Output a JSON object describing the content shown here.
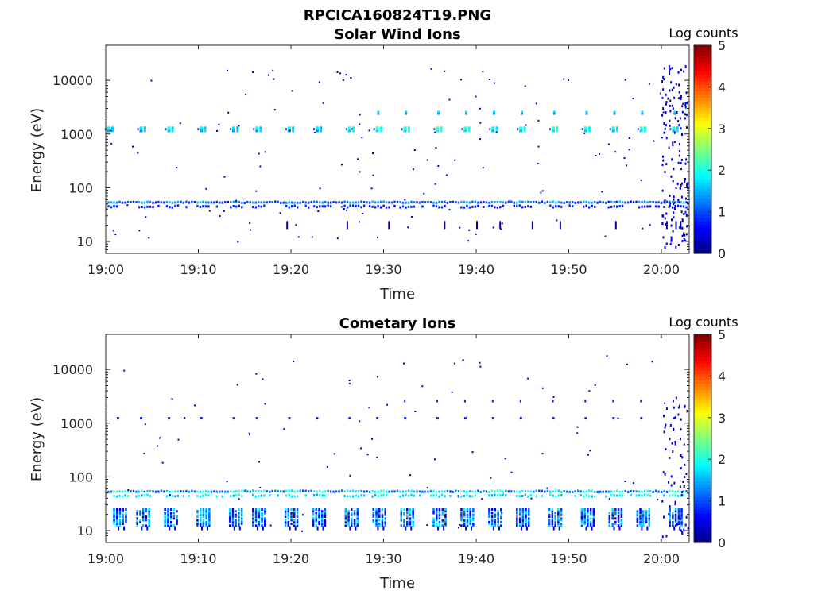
{
  "figure_title": "RPCICA160824T19.PNG",
  "colormap_stops": [
    "#00007f",
    "#0000ff",
    "#007fff",
    "#00ffff",
    "#7fff7f",
    "#ffff00",
    "#ff7f00",
    "#ff0000",
    "#7f0000"
  ],
  "chart_data": [
    {
      "type": "heatmap",
      "title": "Solar Wind Ions",
      "xlabel": "Time",
      "ylabel": "Energy (eV)",
      "colorbar_label": "Log counts",
      "x_ticks": [
        "19:00",
        "19:10",
        "19:20",
        "19:30",
        "19:40",
        "19:50",
        "20:00"
      ],
      "y_ticks": [
        "10",
        "100",
        "1000",
        "10000"
      ],
      "y_scale": "log",
      "ylim": [
        6,
        45000
      ],
      "xlim": [
        "19:00",
        "20:03"
      ],
      "color_ticks": [
        "0",
        "1",
        "2",
        "3",
        "4",
        "5"
      ],
      "clim": [
        0,
        5
      ],
      "sweep_times": [
        "19:00.5",
        "19:04",
        "19:07",
        "19:10.5",
        "19:14",
        "19:16.5",
        "19:20",
        "19:23",
        "19:26.5",
        "19:29.5",
        "19:32.5",
        "19:36",
        "19:39",
        "19:42",
        "19:45",
        "19:48.5",
        "19:52",
        "19:55",
        "19:58",
        "20:01.5"
      ],
      "events": [
        {
          "time": "19:00.5",
          "energy": 1250,
          "log_counts": 1.9
        },
        {
          "time": "19:04",
          "energy": 1250,
          "log_counts": 1.8
        },
        {
          "time": "19:07",
          "energy": 1250,
          "log_counts": 2.0
        },
        {
          "time": "19:10.5",
          "energy": 1250,
          "log_counts": 1.9
        },
        {
          "time": "19:14",
          "energy": 1250,
          "log_counts": 1.8
        },
        {
          "time": "19:16.5",
          "energy": 1250,
          "log_counts": 1.9
        },
        {
          "time": "19:20",
          "energy": 1250,
          "log_counts": 1.9
        },
        {
          "time": "19:23",
          "energy": 1250,
          "log_counts": 1.8
        },
        {
          "time": "19:26.5",
          "energy": 1250,
          "log_counts": 2.1
        },
        {
          "time": "19:29.5",
          "energy": 1250,
          "log_counts": 2.2
        },
        {
          "time": "19:32.5",
          "energy": 1250,
          "log_counts": 2.2
        },
        {
          "time": "19:36",
          "energy": 1250,
          "log_counts": 2.3
        },
        {
          "time": "19:39",
          "energy": 1250,
          "log_counts": 2.2
        },
        {
          "time": "19:42",
          "energy": 1250,
          "log_counts": 2.0
        },
        {
          "time": "19:45",
          "energy": 1250,
          "log_counts": 2.1
        },
        {
          "time": "19:48.5",
          "energy": 1250,
          "log_counts": 2.2
        },
        {
          "time": "19:52",
          "energy": 1250,
          "log_counts": 2.1
        },
        {
          "time": "19:55",
          "energy": 1250,
          "log_counts": 2.0
        },
        {
          "time": "19:58",
          "energy": 1250,
          "log_counts": 2.2
        },
        {
          "time": "20:01.5",
          "energy": 1250,
          "log_counts": 2.0
        }
      ],
      "low_energy_band_eV": [
        45,
        58
      ]
    },
    {
      "type": "heatmap",
      "title": "Cometary Ions",
      "xlabel": "Time",
      "ylabel": "Energy (eV)",
      "colorbar_label": "Log counts",
      "x_ticks": [
        "19:00",
        "19:10",
        "19:20",
        "19:30",
        "19:40",
        "19:50",
        "20:00"
      ],
      "y_ticks": [
        "10",
        "100",
        "1000",
        "10000"
      ],
      "y_scale": "log",
      "ylim": [
        6,
        45000
      ],
      "xlim": [
        "19:00",
        "20:03"
      ],
      "color_ticks": [
        "0",
        "1",
        "2",
        "3",
        "4",
        "5"
      ],
      "clim": [
        0,
        5
      ],
      "sweep_times": [
        "19:01.5",
        "19:04",
        "19:07",
        "19:10.5",
        "19:14",
        "19:16.5",
        "19:20",
        "19:23",
        "19:26.5",
        "19:29.5",
        "19:32.5",
        "19:36",
        "19:39",
        "19:42",
        "19:45",
        "19:48.5",
        "19:52",
        "19:55",
        "19:58",
        "20:01.5"
      ],
      "low_energy_band_eV": [
        45,
        58
      ],
      "pickup_band_eV": [
        13,
        28
      ]
    }
  ]
}
